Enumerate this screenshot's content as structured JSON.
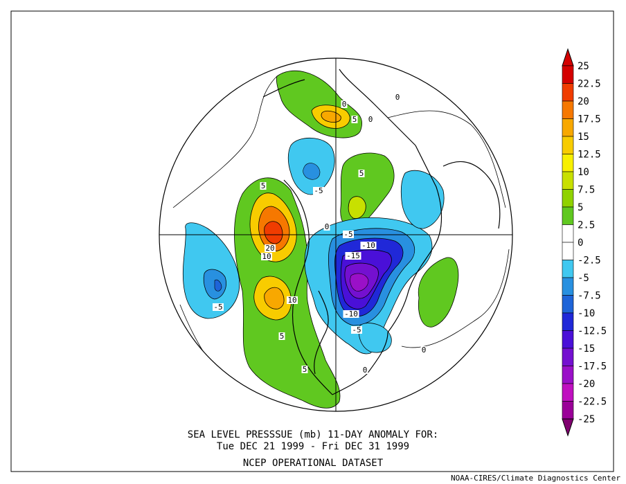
{
  "title": {
    "line1": "SEA LEVEL PRESSSUE (mb)   11-DAY ANOMALY FOR:",
    "line2": "Tue DEC 21 1999 - Fri DEC 31 1999",
    "line3": "NCEP OPERATIONAL DATASET"
  },
  "credit": "NOAA-CIRES/Climate Diagnostics Center",
  "colorbar": {
    "levels": [
      {
        "label": "25",
        "color": "#d40000"
      },
      {
        "label": "22.5",
        "color": "#f03c00"
      },
      {
        "label": "20",
        "color": "#f67800"
      },
      {
        "label": "17.5",
        "color": "#f8a800"
      },
      {
        "label": "15",
        "color": "#f8cc00"
      },
      {
        "label": "12.5",
        "color": "#f8f000"
      },
      {
        "label": "10",
        "color": "#c8e000"
      },
      {
        "label": "7.5",
        "color": "#90d200"
      },
      {
        "label": "5",
        "color": "#60c820"
      },
      {
        "label": "2.5",
        "color": "#ffffff"
      },
      {
        "label": "0",
        "color": "#ffffff"
      },
      {
        "label": "-2.5",
        "color": "#40c8f0"
      },
      {
        "label": "-5",
        "color": "#2890e0"
      },
      {
        "label": "-7.5",
        "color": "#1e64d8"
      },
      {
        "label": "-10",
        "color": "#2028d8"
      },
      {
        "label": "-12.5",
        "color": "#4a10d8"
      },
      {
        "label": "-15",
        "color": "#7410d0"
      },
      {
        "label": "-17.5",
        "color": "#9a10c8"
      },
      {
        "label": "-20",
        "color": "#c010c0"
      },
      {
        "label": "-22.5",
        "color": "#9a0098"
      },
      {
        "label": "-25",
        "color": "#800070"
      }
    ]
  },
  "map": {
    "projection": "north polar stereographic",
    "contour_labels": [
      "0",
      "5",
      "0",
      "0",
      "5",
      "-5",
      "5",
      "20",
      "10",
      "-5",
      "10",
      "5",
      "5",
      "0",
      "-10",
      "-15",
      "-10",
      "-5",
      "0",
      "-5",
      "0"
    ]
  }
}
